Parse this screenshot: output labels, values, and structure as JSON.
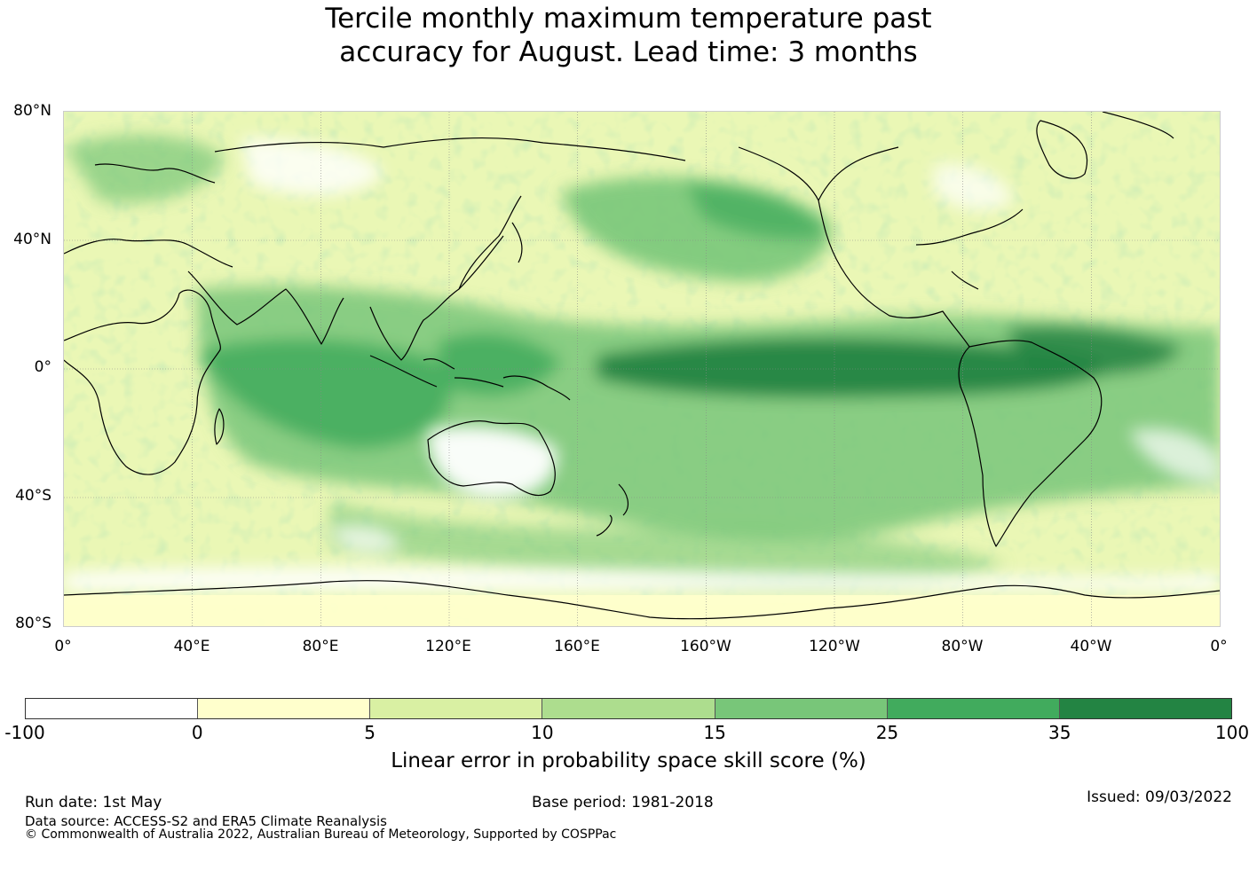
{
  "title": {
    "line1": "Tercile monthly maximum temperature past",
    "line2": "accuracy for August. Lead time: 3 months"
  },
  "map": {
    "lat_labels": [
      "80°N",
      "40°N",
      "0°",
      "40°S",
      "80°S"
    ],
    "lon_labels": [
      "0°",
      "40°E",
      "80°E",
      "120°E",
      "160°E",
      "160°W",
      "120°W",
      "80°W",
      "40°W",
      "0°"
    ]
  },
  "colorbar": {
    "ticks": [
      "-100",
      "0",
      "5",
      "10",
      "15",
      "25",
      "35",
      "100"
    ],
    "colors": [
      "#ffffff",
      "#ffffcc",
      "#d9f0a3",
      "#addd8e",
      "#78c679",
      "#41ab5d",
      "#238443"
    ],
    "label": "Linear error in probability space skill score (%)"
  },
  "footer": {
    "run_date": "Run date: 1st May",
    "base_period": "Base period: 1981-2018",
    "issued": "Issued: 09/03/2022",
    "data_source": "Data source: ACCESS-S2 and ERA5 Climate Reanalysis",
    "copyright": "© Commonwealth of Australia 2022, Australian Bureau of Meteorology, Supported by COSPPac"
  }
}
